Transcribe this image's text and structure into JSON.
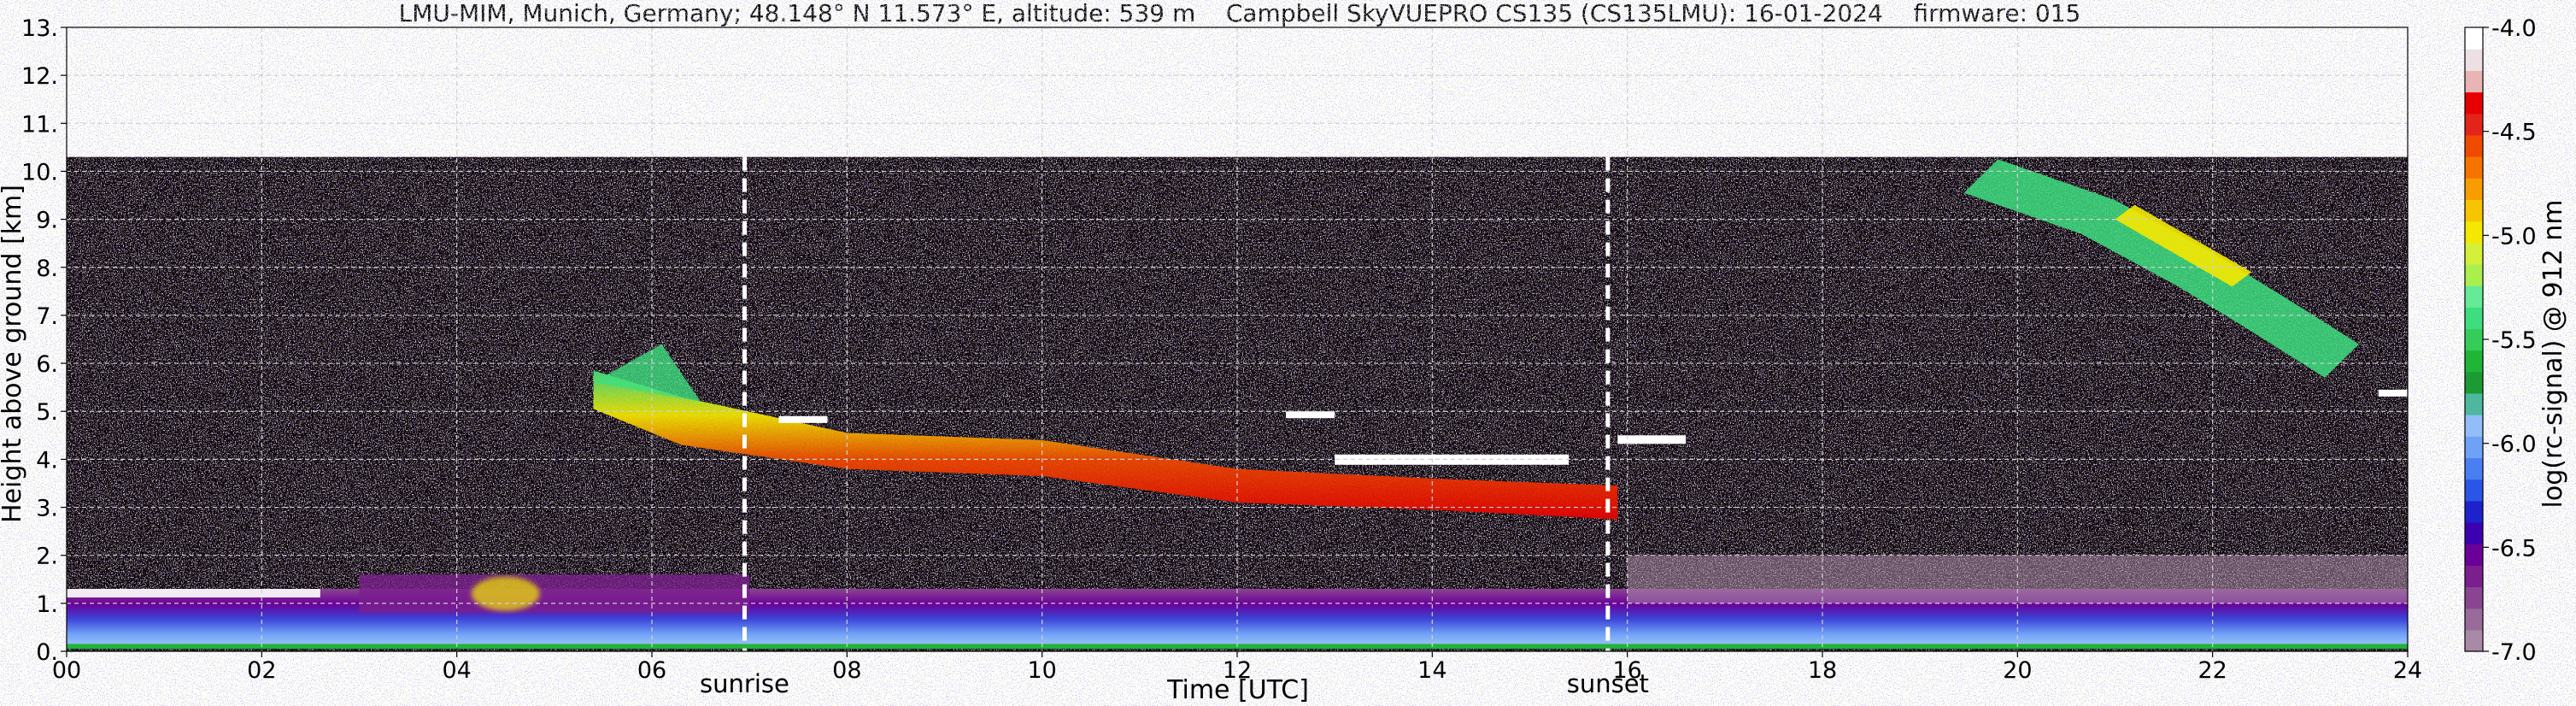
{
  "chart_data": {
    "type": "heatmap",
    "title": "LMU-MIM, Munich, Germany; 48.148° N 11.573° E, altitude: 539 m    Campbell SkyVUEPRO CS135 (CS135LMU): 16-01-2024    firmware: 015",
    "xlabel": "Time [UTC]",
    "ylabel": "Height above ground [km]",
    "xlim": [
      0,
      24
    ],
    "ylim": [
      0,
      13
    ],
    "x_ticks": [
      0,
      2,
      4,
      6,
      8,
      10,
      12,
      14,
      16,
      18,
      20,
      22,
      24
    ],
    "x_tick_labels": [
      "00",
      "02",
      "04",
      "06",
      "08",
      "10",
      "12",
      "14",
      "16",
      "18",
      "20",
      "22",
      "24"
    ],
    "y_ticks": [
      0,
      1,
      2,
      3,
      4,
      5,
      6,
      7,
      8,
      9,
      10,
      11,
      12,
      13
    ],
    "y_tick_labels": [
      "0.",
      "1.",
      "2.",
      "3.",
      "4.",
      "5.",
      "6.",
      "7.",
      "8.",
      "9.",
      "10.",
      "11.",
      "12.",
      "13."
    ],
    "grid": true,
    "data_top_km": 10.3,
    "events": [
      {
        "label": "sunrise",
        "x": 6.95
      },
      {
        "label": "sunset",
        "x": 15.8
      }
    ],
    "colorbar": {
      "label": "log(rc-signal) @ 912 nm",
      "min": -7.0,
      "max": -4.0,
      "ticks": [
        -7.0,
        -6.5,
        -6.0,
        -5.5,
        -5.0,
        -4.5,
        -4.0
      ],
      "tick_labels": [
        "-7.0",
        "-6.5",
        "-6.0",
        "-5.5",
        "-5.0",
        "-4.5",
        "-4.0"
      ],
      "colors": [
        "#a98aa6",
        "#9a6a9b",
        "#8a4591",
        "#7a1f8d",
        "#6a0098",
        "#3c00b0",
        "#1d22cc",
        "#2a55e6",
        "#4a7ff2",
        "#6fa1f7",
        "#93bdf7",
        "#4db89d",
        "#1c9a34",
        "#1fb536",
        "#36cc5a",
        "#3ede80",
        "#66ea98",
        "#a9f04d",
        "#d4f03a",
        "#f5e800",
        "#f6c400",
        "#f79d00",
        "#f77300",
        "#f04a00",
        "#e2241a",
        "#e80000",
        "#e8b4b4",
        "#ece0e4",
        "#ffffff"
      ]
    },
    "features": [
      {
        "name": "boundary layer aerosol",
        "x": [
          0,
          24
        ],
        "y_km": [
          0.05,
          1.3
        ]
      },
      {
        "name": "cloud layer",
        "x": [
          5.4,
          16.6
        ],
        "y_km": [
          2.9,
          6.4
        ]
      },
      {
        "name": "cirrus",
        "x": [
          19.8,
          23.5
        ],
        "y_km": [
          6.3,
          10.3
        ]
      }
    ]
  }
}
